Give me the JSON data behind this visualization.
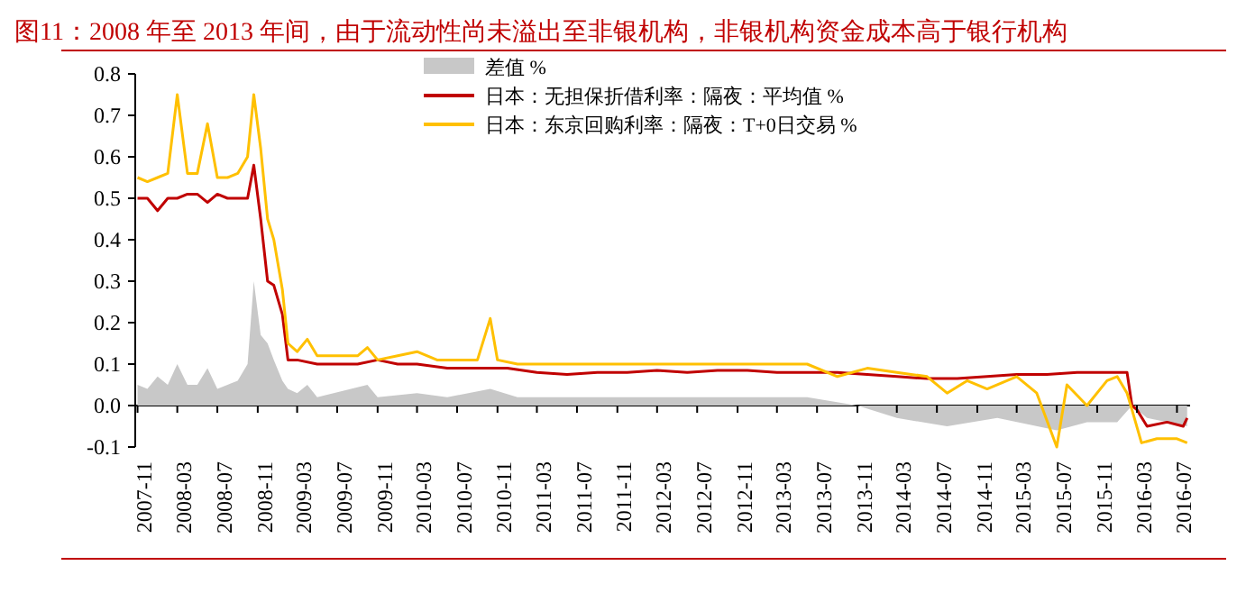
{
  "chart_data": {
    "type": "line",
    "title": "图11：2008 年至 2013 年间，由于流动性尚未溢出至非银机构，非银机构资金成本高于银行机构",
    "xlim": [
      "2007-10-25",
      "2016-08-10"
    ],
    "xticks": [
      {
        "value": "2007-11-01",
        "label": "2007-11"
      },
      {
        "value": "2008-03-01",
        "label": "2008-03"
      },
      {
        "value": "2008-07-01",
        "label": "2008-07"
      },
      {
        "value": "2008-11-01",
        "label": "2008-11"
      },
      {
        "value": "2009-03-01",
        "label": "2009-03"
      },
      {
        "value": "2009-07-01",
        "label": "2009-07"
      },
      {
        "value": "2009-11-01",
        "label": "2009-11"
      },
      {
        "value": "2010-03-01",
        "label": "2010-03"
      },
      {
        "value": "2010-07-01",
        "label": "2010-07"
      },
      {
        "value": "2010-11-01",
        "label": "2010-11"
      },
      {
        "value": "2011-03-01",
        "label": "2011-03"
      },
      {
        "value": "2011-07-01",
        "label": "2011-07"
      },
      {
        "value": "2011-11-01",
        "label": "2011-11"
      },
      {
        "value": "2012-03-01",
        "label": "2012-03"
      },
      {
        "value": "2012-07-01",
        "label": "2012-07"
      },
      {
        "value": "2012-11-01",
        "label": "2012-11"
      },
      {
        "value": "2013-03-01",
        "label": "2013-03"
      },
      {
        "value": "2013-07-01",
        "label": "2013-07"
      },
      {
        "value": "2013-11-01",
        "label": "2013-11"
      },
      {
        "value": "2014-03-01",
        "label": "2014-03"
      },
      {
        "value": "2014-07-01",
        "label": "2014-07"
      },
      {
        "value": "2014-11-01",
        "label": "2014-11"
      },
      {
        "value": "2015-03-01",
        "label": "2015-03"
      },
      {
        "value": "2015-07-01",
        "label": "2015-07"
      },
      {
        "value": "2015-11-01",
        "label": "2015-11"
      },
      {
        "value": "2016-03-01",
        "label": "2016-03"
      },
      {
        "value": "2016-07-01",
        "label": "2016-07"
      }
    ],
    "ylim": [
      -0.1,
      0.8
    ],
    "yticks": [
      {
        "value": -0.1,
        "label": "-0.1"
      },
      {
        "value": 0,
        "label": "0.0"
      },
      {
        "value": 0.1,
        "label": "0.1"
      },
      {
        "value": 0.2,
        "label": "0.2"
      },
      {
        "value": 0.3,
        "label": "0.3"
      },
      {
        "value": 0.4,
        "label": "0.4"
      },
      {
        "value": 0.5,
        "label": "0.5"
      },
      {
        "value": 0.6,
        "label": "0.6"
      },
      {
        "value": 0.7,
        "label": "0.7"
      },
      {
        "value": 0.8,
        "label": "0.8"
      }
    ],
    "grid": false,
    "legend": "top",
    "line_style": "solid",
    "marker": "none",
    "series": [
      {
        "name": "差值 %",
        "type": "area",
        "color": "#c8c8c8",
        "x": [
          "2007-11-01",
          "2007-12-01",
          "2008-01-01",
          "2008-02-01",
          "2008-03-01",
          "2008-04-01",
          "2008-05-01",
          "2008-06-01",
          "2008-07-01",
          "2008-08-01",
          "2008-09-01",
          "2008-10-01",
          "2008-10-20",
          "2008-11-10",
          "2008-12-01",
          "2008-12-20",
          "2009-01-15",
          "2009-02-01",
          "2009-03-01",
          "2009-04-01",
          "2009-05-01",
          "2009-10-01",
          "2009-11-01",
          "2010-03-01",
          "2010-06-01",
          "2010-10-10",
          "2011-01-01",
          "2012-01-01",
          "2013-06-01",
          "2013-11-01",
          "2014-03-01",
          "2014-08-01",
          "2015-01-01",
          "2015-07-01",
          "2015-10-01",
          "2016-01-01",
          "2016-02-15",
          "2016-04-01",
          "2016-08-01"
        ],
        "values": [
          0.05,
          0.04,
          0.07,
          0.05,
          0.1,
          0.05,
          0.05,
          0.09,
          0.04,
          0.05,
          0.06,
          0.1,
          0.3,
          0.17,
          0.15,
          0.11,
          0.06,
          0.04,
          0.03,
          0.05,
          0.02,
          0.05,
          0.02,
          0.03,
          0.02,
          0.04,
          0.02,
          0.02,
          0.02,
          0,
          -0.03,
          -0.05,
          -0.03,
          -0.06,
          -0.04,
          -0.04,
          0,
          -0.03,
          -0.05
        ]
      },
      {
        "name": "日本：无担保折借利率：隔夜：平均值 %",
        "color": "#c00000",
        "x": [
          "2007-11-01",
          "2007-12-01",
          "2008-01-01",
          "2008-02-01",
          "2008-03-01",
          "2008-04-01",
          "2008-05-01",
          "2008-06-01",
          "2008-07-01",
          "2008-08-01",
          "2008-09-01",
          "2008-10-01",
          "2008-10-20",
          "2008-11-10",
          "2008-12-01",
          "2008-12-20",
          "2009-01-15",
          "2009-02-01",
          "2009-03-01",
          "2009-05-01",
          "2009-07-01",
          "2009-09-01",
          "2009-11-01",
          "2010-01-01",
          "2010-03-01",
          "2010-06-01",
          "2010-09-01",
          "2010-12-01",
          "2011-03-01",
          "2011-06-01",
          "2011-09-01",
          "2011-12-01",
          "2012-03-01",
          "2012-06-01",
          "2012-09-01",
          "2012-12-01",
          "2013-03-01",
          "2013-06-01",
          "2013-09-01",
          "2013-12-01",
          "2014-03-01",
          "2014-06-01",
          "2014-09-01",
          "2014-12-01",
          "2015-03-01",
          "2015-06-01",
          "2015-09-01",
          "2015-12-01",
          "2016-01-31",
          "2016-02-15",
          "2016-03-01",
          "2016-04-01",
          "2016-06-01",
          "2016-07-20",
          "2016-08-01"
        ],
        "values": [
          0.5,
          0.5,
          0.47,
          0.5,
          0.5,
          0.51,
          0.51,
          0.49,
          0.51,
          0.5,
          0.5,
          0.5,
          0.58,
          0.45,
          0.3,
          0.29,
          0.22,
          0.11,
          0.11,
          0.1,
          0.1,
          0.1,
          0.11,
          0.1,
          0.1,
          0.09,
          0.09,
          0.09,
          0.08,
          0.075,
          0.08,
          0.08,
          0.085,
          0.08,
          0.085,
          0.085,
          0.08,
          0.08,
          0.08,
          0.075,
          0.07,
          0.065,
          0.065,
          0.07,
          0.075,
          0.075,
          0.08,
          0.08,
          0.08,
          0,
          -0.01,
          -0.05,
          -0.04,
          -0.05,
          -0.03
        ]
      },
      {
        "name": "日本：东京回购利率：隔夜：T+0日交易 %",
        "color": "#ffc000",
        "x": [
          "2007-11-01",
          "2007-12-01",
          "2008-01-01",
          "2008-02-01",
          "2008-03-01",
          "2008-04-01",
          "2008-05-01",
          "2008-06-01",
          "2008-07-01",
          "2008-08-01",
          "2008-09-01",
          "2008-10-01",
          "2008-10-20",
          "2008-11-10",
          "2008-12-01",
          "2008-12-20",
          "2009-01-15",
          "2009-02-01",
          "2009-03-01",
          "2009-04-01",
          "2009-05-01",
          "2009-07-01",
          "2009-09-01",
          "2009-10-01",
          "2009-11-01",
          "2010-01-01",
          "2010-03-01",
          "2010-05-01",
          "2010-09-01",
          "2010-10-10",
          "2010-11-01",
          "2011-01-01",
          "2011-06-01",
          "2011-12-01",
          "2012-06-01",
          "2012-12-01",
          "2013-06-01",
          "2013-09-01",
          "2013-12-01",
          "2014-03-01",
          "2014-06-01",
          "2014-08-01",
          "2014-10-01",
          "2014-12-01",
          "2015-03-01",
          "2015-05-01",
          "2015-07-01",
          "2015-08-01",
          "2015-10-01",
          "2015-12-01",
          "2016-01-01",
          "2016-01-31",
          "2016-02-15",
          "2016-03-15",
          "2016-05-01",
          "2016-07-01",
          "2016-08-01"
        ],
        "values": [
          0.55,
          0.54,
          0.55,
          0.56,
          0.75,
          0.56,
          0.56,
          0.68,
          0.55,
          0.55,
          0.56,
          0.6,
          0.75,
          0.62,
          0.45,
          0.4,
          0.28,
          0.15,
          0.13,
          0.16,
          0.12,
          0.12,
          0.12,
          0.14,
          0.11,
          0.12,
          0.13,
          0.11,
          0.11,
          0.21,
          0.11,
          0.1,
          0.1,
          0.1,
          0.1,
          0.1,
          0.1,
          0.07,
          0.09,
          0.08,
          0.07,
          0.03,
          0.06,
          0.04,
          0.07,
          0.03,
          -0.1,
          0.05,
          0,
          0.06,
          0.07,
          0.03,
          -0.01,
          -0.09,
          -0.08,
          -0.08,
          -0.09
        ]
      }
    ]
  }
}
